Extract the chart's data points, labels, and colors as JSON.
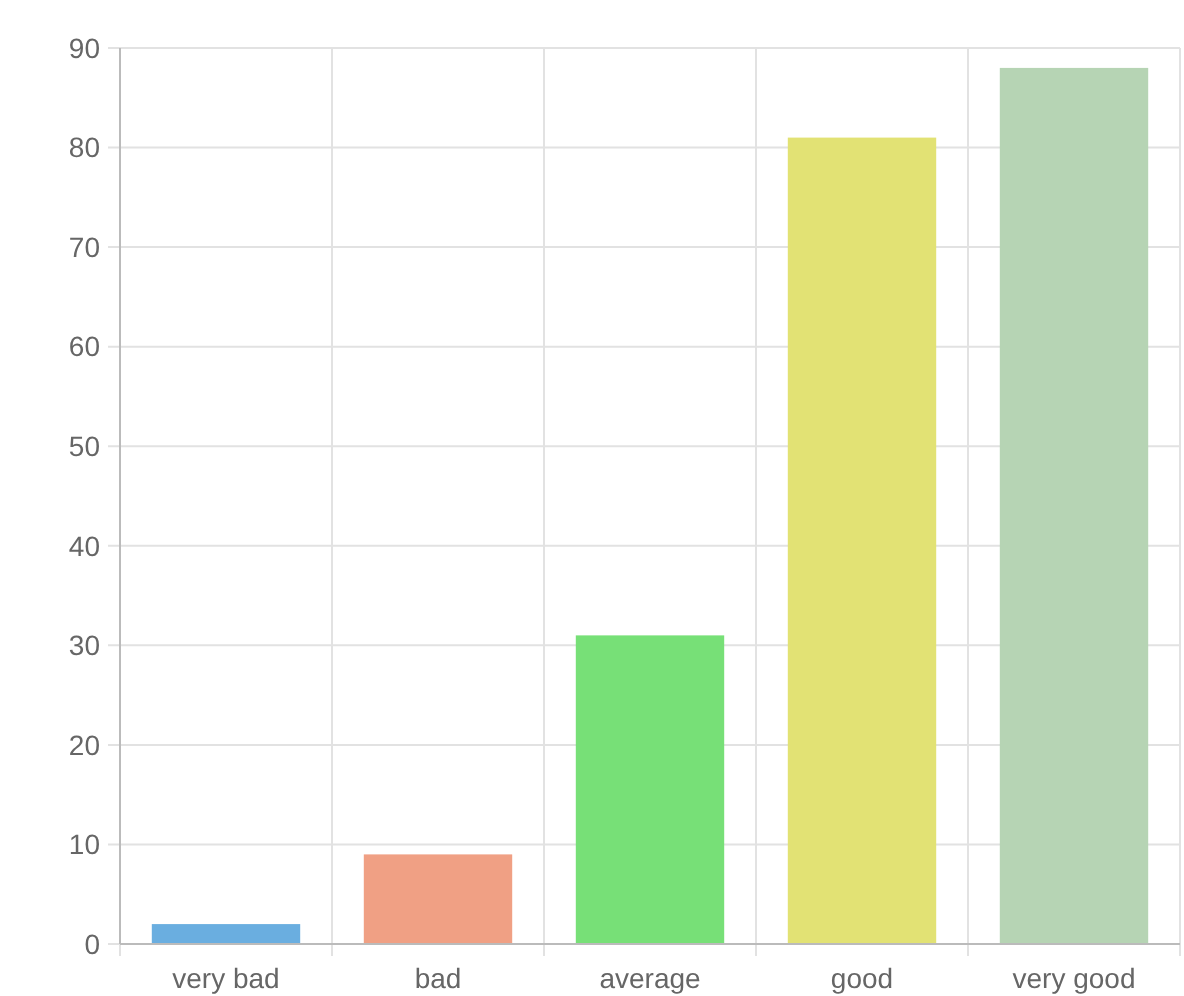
{
  "chart_data": {
    "type": "bar",
    "categories": [
      "very bad",
      "bad",
      "average",
      "good",
      "very good"
    ],
    "values": [
      2,
      9,
      31,
      81,
      88
    ],
    "colors": [
      "#6aaee0",
      "#f0a084",
      "#77e077",
      "#e2e274",
      "#b6d4b4"
    ],
    "ylim": [
      0,
      90
    ],
    "yticks": [
      0,
      10,
      20,
      30,
      40,
      50,
      60,
      70,
      80,
      90
    ],
    "grid": true
  }
}
